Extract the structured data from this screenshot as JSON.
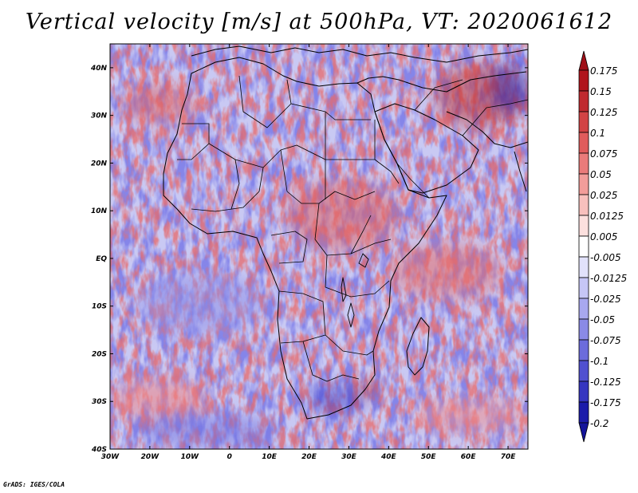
{
  "title": "Vertical velocity [m/s] at 500hPa, VT: 2020061612",
  "credit": "GrADS: IGES/COLA",
  "map": {
    "lon_range": [
      -30,
      75
    ],
    "lat_range": [
      -40,
      45
    ],
    "lon_ticks": [
      "30W",
      "20W",
      "10W",
      "0",
      "10E",
      "20E",
      "30E",
      "40E",
      "50E",
      "60E",
      "70E"
    ],
    "lat_ticks": [
      "40N",
      "30N",
      "20N",
      "10N",
      "EQ",
      "10S",
      "20S",
      "30S",
      "40S"
    ],
    "field": "vertical velocity",
    "level": "500hPa",
    "valid_time": "2020061612"
  },
  "colorbar": {
    "labels": [
      "0.175",
      "0.15",
      "0.125",
      "0.1",
      "0.075",
      "0.05",
      "0.025",
      "0.0125",
      "0.005",
      "-0.005",
      "-0.0125",
      "-0.025",
      "-0.05",
      "-0.075",
      "-0.1",
      "-0.125",
      "-0.175",
      "-0.2"
    ],
    "colors": [
      "#b0141c",
      "#c02a2f",
      "#d24344",
      "#e05c5c",
      "#ea7b7a",
      "#f29d9a",
      "#f8c0bd",
      "#fce0de",
      "#ffffff",
      "#e2e2fb",
      "#c6c6f6",
      "#a8a8ef",
      "#8a8ae6",
      "#6c6cdc",
      "#5050d0",
      "#3535c0",
      "#1c1caa"
    ],
    "top_color": "#a01018",
    "bottom_color": "#14149a"
  }
}
